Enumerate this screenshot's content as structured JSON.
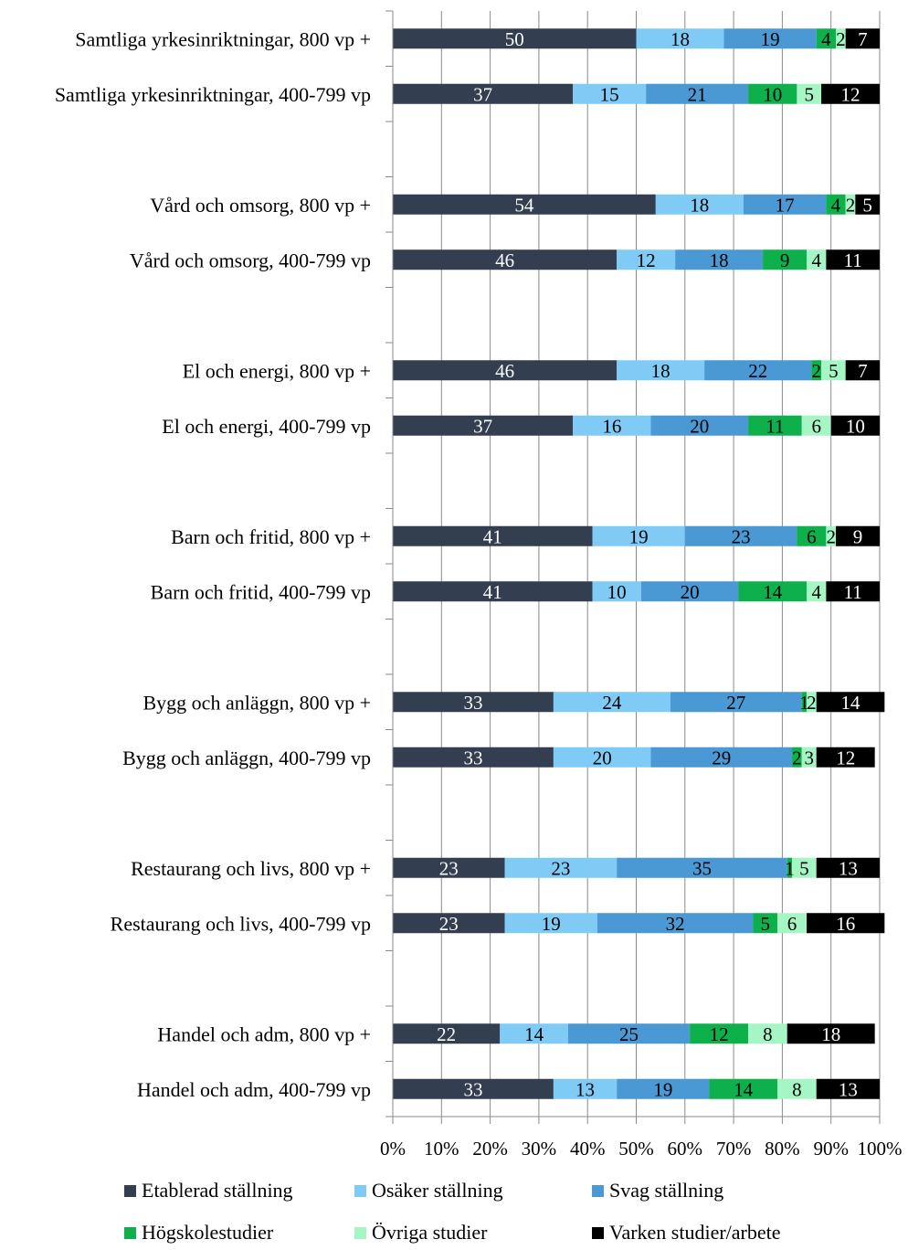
{
  "chart_data": {
    "type": "bar",
    "orientation": "horizontal",
    "stacked": "percent",
    "title": "",
    "xlabel": "",
    "ylabel": "",
    "xlim": [
      0,
      100
    ],
    "grid": "vertical",
    "legend_position": "bottom",
    "x_ticks": [
      "0%",
      "10%",
      "20%",
      "30%",
      "40%",
      "50%",
      "60%",
      "70%",
      "80%",
      "90%",
      "100%"
    ],
    "categories": [
      "Samtliga yrkesinriktningar, 800 vp +",
      "Samtliga yrkesinriktningar, 400-799 vp",
      "",
      "Vård och omsorg, 800 vp +",
      "Vård och omsorg, 400-799 vp",
      "",
      "El och energi, 800 vp +",
      "El och energi, 400-799 vp",
      "",
      "Barn och fritid, 800 vp +",
      "Barn och fritid, 400-799 vp",
      "",
      "Bygg och anläggn, 800 vp +",
      "Bygg och anläggn, 400-799 vp",
      "",
      "Restaurang och livs, 800 vp +",
      "Restaurang och livs, 400-799 vp",
      "",
      "Handel och adm, 800 vp +",
      "Handel och adm, 400-799 vp"
    ],
    "series": [
      {
        "name": "Etablerad ställning",
        "color": "#333f50",
        "label_color": "#ffffff",
        "values": [
          50,
          37,
          null,
          54,
          46,
          null,
          46,
          37,
          null,
          41,
          41,
          null,
          33,
          33,
          null,
          23,
          23,
          null,
          22,
          33
        ]
      },
      {
        "name": "Osäker ställning",
        "color": "#7fcbf5",
        "label_color": "#000000",
        "values": [
          18,
          15,
          null,
          18,
          12,
          null,
          18,
          16,
          null,
          19,
          10,
          null,
          24,
          20,
          null,
          23,
          19,
          null,
          14,
          13
        ]
      },
      {
        "name": "Svag ställning",
        "color": "#4a98d4",
        "label_color": "#000000",
        "values": [
          19,
          21,
          null,
          17,
          18,
          null,
          22,
          20,
          null,
          23,
          20,
          null,
          27,
          29,
          null,
          35,
          32,
          null,
          25,
          19
        ]
      },
      {
        "name": "Högskolestudier",
        "color": "#0db04b",
        "label_color": "#000000",
        "values": [
          4,
          10,
          null,
          4,
          9,
          null,
          2,
          11,
          null,
          6,
          14,
          null,
          1,
          2,
          null,
          1,
          5,
          null,
          12,
          14
        ]
      },
      {
        "name": "Övriga studier",
        "color": "#a6f5c4",
        "label_color": "#000000",
        "values": [
          2,
          5,
          null,
          2,
          4,
          null,
          5,
          6,
          null,
          2,
          4,
          null,
          2,
          3,
          null,
          5,
          6,
          null,
          8,
          8
        ]
      },
      {
        "name": "Varken studier/arbete",
        "color": "#000000",
        "label_color": "#ffffff",
        "values": [
          7,
          12,
          null,
          5,
          11,
          null,
          7,
          10,
          null,
          9,
          11,
          null,
          14,
          12,
          null,
          13,
          16,
          null,
          18,
          13
        ]
      }
    ]
  }
}
